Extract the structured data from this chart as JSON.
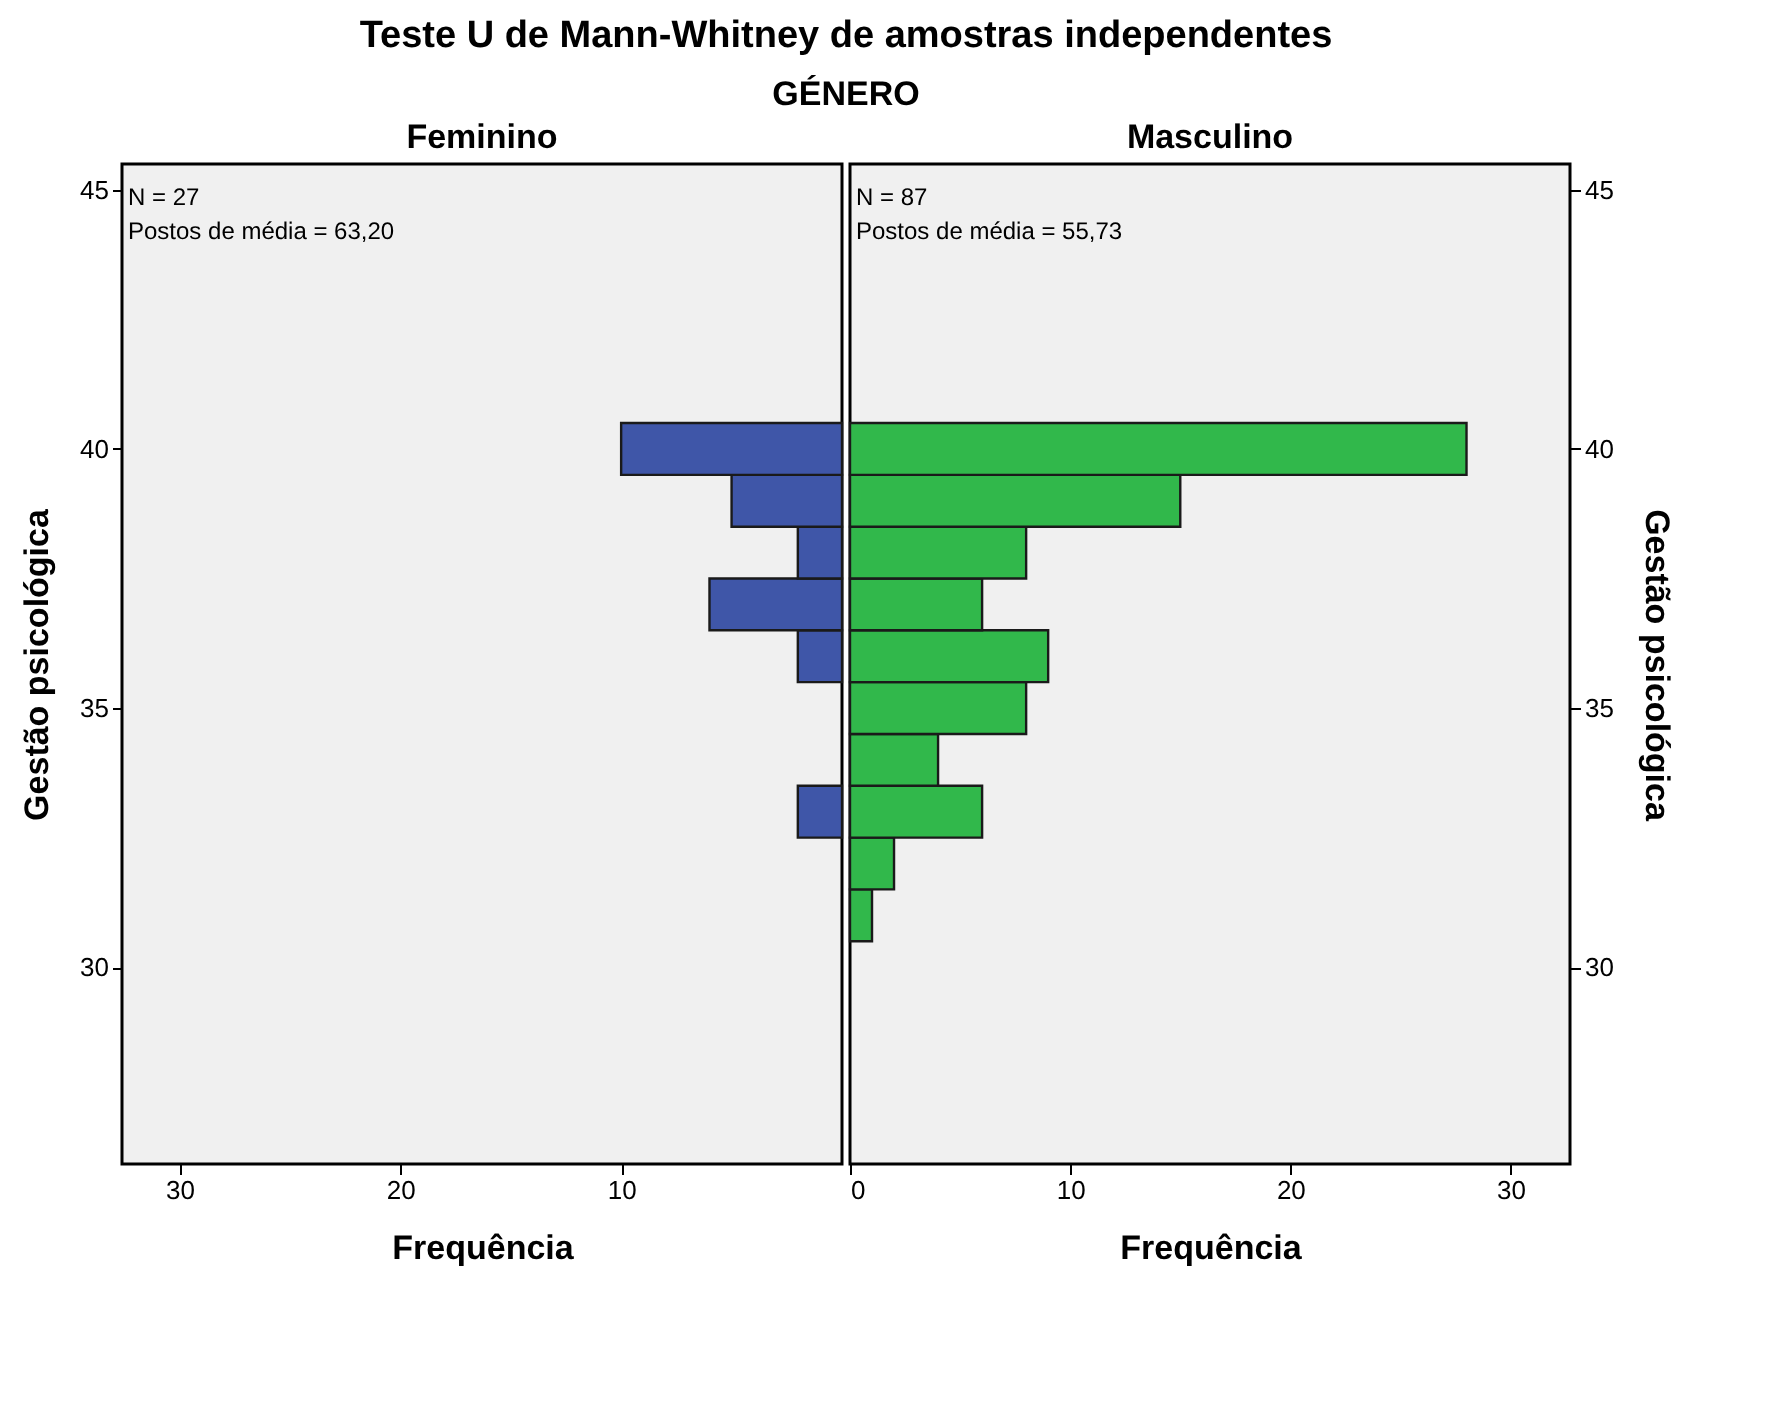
{
  "chart_data": [
    {
      "type": "histogram",
      "orientation": "horizontal",
      "title": "Teste U de Mann-Whitney de amostras independentes",
      "subtitle": "GÉNERO",
      "legend_title": "Feminino",
      "xlabel": "Frequência",
      "ylabel": "Gestão psicológica",
      "color": "#3f56a8",
      "bins": [
        30.5,
        31.5,
        32.5,
        33.5,
        34.5,
        35.5,
        36.5,
        37.5,
        38.5,
        39.5,
        40.5
      ],
      "values": [
        0,
        0,
        2,
        0,
        0,
        2,
        6,
        2,
        5,
        10
      ],
      "xlim": [
        32.6,
        0
      ],
      "xticks": [
        30,
        20,
        10
      ],
      "ylim": [
        26.2,
        45.5
      ],
      "yticks": [
        30,
        35,
        40,
        45
      ],
      "grid": false,
      "annotations": [
        "N = 27",
        "Postos de média = 63,20"
      ]
    },
    {
      "type": "histogram",
      "orientation": "horizontal",
      "legend_title": "Masculino",
      "xlabel": "Frequência",
      "ylabel": "Gestão psicológica",
      "color": "#31b84b",
      "bins": [
        30.5,
        31.5,
        32.5,
        33.5,
        34.5,
        35.5,
        36.5,
        37.5,
        38.5,
        39.5,
        40.5
      ],
      "values": [
        1,
        2,
        6,
        4,
        8,
        9,
        6,
        8,
        15,
        28
      ],
      "xlim": [
        0,
        32.7
      ],
      "xticks": [
        0,
        10,
        20,
        30
      ],
      "ylim": [
        26.2,
        45.5
      ],
      "yticks": [
        30,
        35,
        40,
        45
      ],
      "grid": false,
      "annotations": [
        "N = 87",
        "Postos de média = 55,73"
      ]
    }
  ]
}
